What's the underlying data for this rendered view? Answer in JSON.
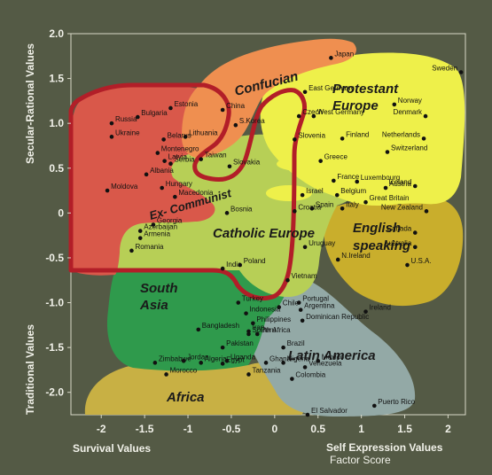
{
  "chart_data": {
    "type": "scatter",
    "xlabel_left": "Survival Values",
    "xlabel_right": "Self Expression Values",
    "xlabel_sub": "Factor Score",
    "ylabel_top": "Secular-Rational Values",
    "ylabel_bottom": "Traditional Values",
    "xlim": [
      -2.35,
      2.2
    ],
    "ylim": [
      -2.25,
      2.0
    ],
    "xticks": [
      -2,
      -1.5,
      -1,
      -0.5,
      0,
      0.5,
      1,
      1.5,
      2
    ],
    "yticks": [
      2.0,
      1.5,
      1.0,
      0.5,
      0,
      -0.5,
      -1.0,
      -1.5,
      -2.0
    ],
    "xtick_labels": [
      "-2",
      "-1.5",
      "-1",
      "-0.5",
      "0",
      "0.5",
      "1",
      "1.5",
      "2"
    ],
    "ytick_labels": [
      "2.0",
      "1.5",
      "1.0",
      "0.5",
      "0",
      "-0.5",
      "-1.0",
      "-1.5",
      "-2.0"
    ],
    "regions": [
      {
        "name": "Confucian",
        "color": "#ef8f50"
      },
      {
        "name": "Protestant Europe",
        "color": "#eef04a"
      },
      {
        "name": "Ex-Communist",
        "color": "#d9584a"
      },
      {
        "name": "Catholic Europe",
        "color": "#b7cf56"
      },
      {
        "name": "English speaking",
        "color": "#c9ae2c"
      },
      {
        "name": "South Asia",
        "color": "#2f9a4c"
      },
      {
        "name": "Latin America",
        "color": "#93a9a6"
      },
      {
        "name": "Africa",
        "color": "#c8b044"
      }
    ],
    "region_labels": [
      {
        "text": "Confucian"
      },
      {
        "text": "Protestant"
      },
      {
        "text": "Europe"
      },
      {
        "text": "Ex- Communist"
      },
      {
        "text": "Catholic Europe"
      },
      {
        "text": "English"
      },
      {
        "text": "speaking"
      },
      {
        "text": "South"
      },
      {
        "text": "Asia"
      },
      {
        "text": "Latin America"
      },
      {
        "text": "Africa"
      }
    ],
    "points": [
      {
        "name": "Japan",
        "x": 0.65,
        "y": 1.73
      },
      {
        "name": "Sweden",
        "x": 2.15,
        "y": 1.57
      },
      {
        "name": "East Germany",
        "x": 0.35,
        "y": 1.35
      },
      {
        "name": "Norway",
        "x": 1.38,
        "y": 1.21
      },
      {
        "name": "Estonia",
        "x": -1.2,
        "y": 1.17
      },
      {
        "name": "China",
        "x": -0.6,
        "y": 1.15
      },
      {
        "name": "Czech",
        "x": 0.28,
        "y": 1.08
      },
      {
        "name": "West Germany",
        "x": 0.45,
        "y": 1.08
      },
      {
        "name": "Russia",
        "x": -1.88,
        "y": 1.0
      },
      {
        "name": "Bulgaria",
        "x": -1.58,
        "y": 1.07
      },
      {
        "name": "Denmark",
        "x": 1.74,
        "y": 1.08
      },
      {
        "name": "S.Korea",
        "x": -0.45,
        "y": 0.98
      },
      {
        "name": "Ukraine",
        "x": -1.88,
        "y": 0.85
      },
      {
        "name": "Belarus",
        "x": -1.28,
        "y": 0.82
      },
      {
        "name": "Lithuania",
        "x": -1.03,
        "y": 0.85
      },
      {
        "name": "Netherlands",
        "x": 1.72,
        "y": 0.83
      },
      {
        "name": "Finland",
        "x": 0.78,
        "y": 0.83
      },
      {
        "name": "Slovenia",
        "x": 0.23,
        "y": 0.82
      },
      {
        "name": "Montenegro",
        "x": -1.35,
        "y": 0.67
      },
      {
        "name": "Switzerland",
        "x": 1.3,
        "y": 0.68
      },
      {
        "name": "Taiwan",
        "x": -0.85,
        "y": 0.6
      },
      {
        "name": "Latvia",
        "x": -1.27,
        "y": 0.58
      },
      {
        "name": "Serbia",
        "x": -1.2,
        "y": 0.55
      },
      {
        "name": "Greece",
        "x": 0.53,
        "y": 0.58
      },
      {
        "name": "Slovakia",
        "x": -0.52,
        "y": 0.52
      },
      {
        "name": "Albania",
        "x": -1.48,
        "y": 0.43
      },
      {
        "name": "France",
        "x": 0.68,
        "y": 0.36
      },
      {
        "name": "Luxembourg",
        "x": 0.95,
        "y": 0.35
      },
      {
        "name": "Moldova",
        "x": -1.93,
        "y": 0.25
      },
      {
        "name": "Hungary",
        "x": -1.3,
        "y": 0.28
      },
      {
        "name": "Iceland",
        "x": 1.62,
        "y": 0.3
      },
      {
        "name": "Austria",
        "x": 1.28,
        "y": 0.28
      },
      {
        "name": "Belgium",
        "x": 0.72,
        "y": 0.2
      },
      {
        "name": "Israel",
        "x": 0.32,
        "y": 0.2
      },
      {
        "name": "Macedonia",
        "x": -1.15,
        "y": 0.18
      },
      {
        "name": "Great Britain",
        "x": 1.05,
        "y": 0.12
      },
      {
        "name": "Italy",
        "x": 0.78,
        "y": 0.05
      },
      {
        "name": "Spain",
        "x": 0.43,
        "y": 0.05
      },
      {
        "name": "Bosnia",
        "x": -0.55,
        "y": 0.0
      },
      {
        "name": "Croatia",
        "x": 0.23,
        "y": 0.02
      },
      {
        "name": "New Zealand",
        "x": 1.75,
        "y": 0.02
      },
      {
        "name": "Georgia",
        "x": -1.4,
        "y": -0.13
      },
      {
        "name": "Azerbaijan",
        "x": -1.55,
        "y": -0.2
      },
      {
        "name": "Armenia",
        "x": -1.55,
        "y": -0.28
      },
      {
        "name": "Canada",
        "x": 1.62,
        "y": -0.22
      },
      {
        "name": "Australia",
        "x": 1.62,
        "y": -0.38
      },
      {
        "name": "Romania",
        "x": -1.65,
        "y": -0.42
      },
      {
        "name": "Uruguay",
        "x": 0.35,
        "y": -0.38
      },
      {
        "name": "N.Ireland",
        "x": 0.73,
        "y": -0.52
      },
      {
        "name": "Poland",
        "x": -0.4,
        "y": -0.58
      },
      {
        "name": "U.S.A.",
        "x": 1.53,
        "y": -0.58
      },
      {
        "name": "India",
        "x": -0.6,
        "y": -0.62
      },
      {
        "name": "Vietnam",
        "x": 0.15,
        "y": -0.75
      },
      {
        "name": "Turkey",
        "x": -0.42,
        "y": -1.0
      },
      {
        "name": "Portugal",
        "x": 0.28,
        "y": -1.0
      },
      {
        "name": "Chile",
        "x": 0.05,
        "y": -1.05
      },
      {
        "name": "Argentina",
        "x": 0.3,
        "y": -1.08
      },
      {
        "name": "Indonesia",
        "x": -0.33,
        "y": -1.12
      },
      {
        "name": "Ireland",
        "x": 1.05,
        "y": -1.1
      },
      {
        "name": "Philippines",
        "x": -0.25,
        "y": -1.23
      },
      {
        "name": "Bangladesh",
        "x": -0.88,
        "y": -1.3
      },
      {
        "name": "Iran",
        "x": -0.3,
        "y": -1.32
      },
      {
        "name": "Dominican Republic",
        "x": 0.32,
        "y": -1.2
      },
      {
        "name": "Peru",
        "x": -0.2,
        "y": -1.35
      },
      {
        "name": "South Africa",
        "x": -0.3,
        "y": -1.35
      },
      {
        "name": "Pakistan",
        "x": -0.6,
        "y": -1.5
      },
      {
        "name": "Brazil",
        "x": 0.1,
        "y": -1.5
      },
      {
        "name": "Uganda",
        "x": -0.55,
        "y": -1.65
      },
      {
        "name": "Jordan",
        "x": -1.05,
        "y": -1.65
      },
      {
        "name": "Mexico",
        "x": 0.5,
        "y": -1.65
      },
      {
        "name": "Zimbabwe",
        "x": -1.38,
        "y": -1.67
      },
      {
        "name": "Algeria",
        "x": -0.85,
        "y": -1.67
      },
      {
        "name": "Egypt",
        "x": -0.6,
        "y": -1.68
      },
      {
        "name": "Ghana",
        "x": -0.1,
        "y": -1.67
      },
      {
        "name": "Nigeria",
        "x": 0.1,
        "y": -1.67
      },
      {
        "name": "Venezuela",
        "x": 0.35,
        "y": -1.72
      },
      {
        "name": "Morocco",
        "x": -1.25,
        "y": -1.8
      },
      {
        "name": "Tanzania",
        "x": -0.3,
        "y": -1.8
      },
      {
        "name": "Colombia",
        "x": 0.2,
        "y": -1.85
      },
      {
        "name": "Puerto Rico",
        "x": 1.15,
        "y": -2.15
      },
      {
        "name": "El Salvador",
        "x": 0.38,
        "y": -2.25
      }
    ]
  }
}
